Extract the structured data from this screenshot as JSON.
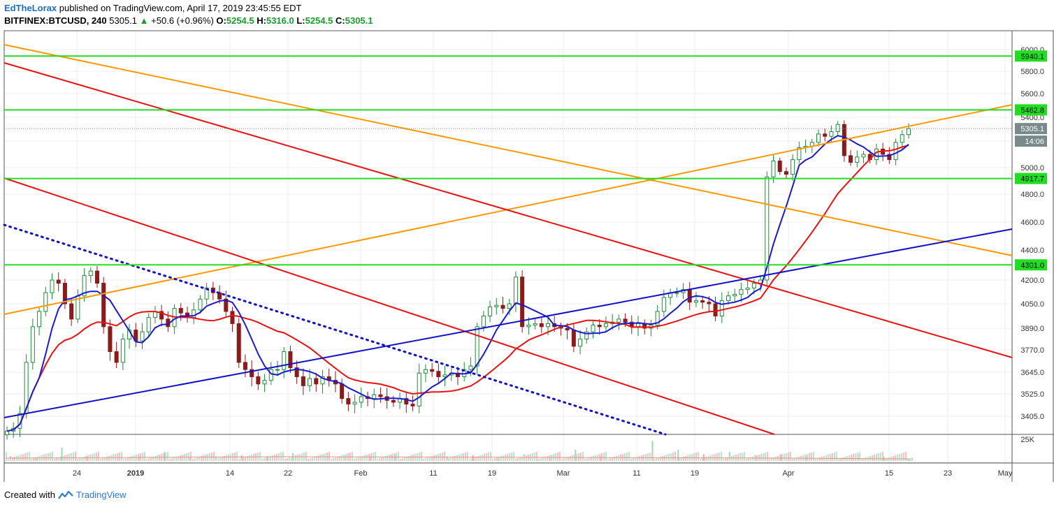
{
  "header": {
    "author": "EdTheLorax",
    "published": "published on TradingView.com, April 17, 2019 23:45:55 EDT",
    "symbol": "BITFINEX:BTCUSD, 240",
    "last": "5305.1",
    "change": "+50.6 (+0.96%)",
    "o_label": "O:",
    "o": "5254.5",
    "h_label": "H:",
    "h": "5316.0",
    "l_label": "L:",
    "l": "5254.5",
    "c_label": "C:",
    "c": "5305.1"
  },
  "footer": {
    "created_with": "Created with",
    "brand": "TradingView"
  },
  "colors": {
    "green_level": "#22dd22",
    "orange": "#ff9900",
    "red": "#ee1111",
    "blue": "#1111cc",
    "ma_red": "#ee1111",
    "ma_blue": "#1a1ad0",
    "candle_up": "#1e8c3a",
    "candle_down": "#8b1a1a",
    "grid": "#eeeeee",
    "label_green_bg": "#22dd22",
    "label_gray_bg": "#7a8a8a"
  },
  "chart_data": {
    "type": "candlestick",
    "symbol": "BITFINEX:BTCUSD",
    "interval": "240",
    "x_ticks": [
      "24",
      "2019",
      "14",
      "22",
      "Feb",
      "11",
      "19",
      "Mar",
      "11",
      "19",
      "Apr",
      "15",
      "23",
      "May"
    ],
    "y_ticks": [
      "6000.0",
      "5800.0",
      "5600.0",
      "5400.0",
      "5200.0",
      "5000.0",
      "4800.0",
      "4600.0",
      "4400.0",
      "4200.0",
      "4050.0",
      "3890.0",
      "3770.0",
      "3645.0",
      "3525.0",
      "3405.0"
    ],
    "volume_tick": "25K",
    "price_labels": [
      {
        "value": "5940.1",
        "kind": "level"
      },
      {
        "value": "5462.8",
        "kind": "level"
      },
      {
        "value": "5305.1",
        "kind": "last"
      },
      {
        "value": "14:06",
        "kind": "countdown"
      },
      {
        "value": "4917.7",
        "kind": "level"
      },
      {
        "value": "4301.0",
        "kind": "level"
      }
    ],
    "horizontal_levels": [
      5940.1,
      5462.8,
      4917.7,
      4301.0
    ],
    "last_price": 5305.1,
    "closes": [
      3325,
      3340,
      3420,
      3700,
      3900,
      4000,
      4120,
      4200,
      4180,
      4050,
      3950,
      4100,
      4230,
      4260,
      4180,
      3900,
      3760,
      3700,
      3830,
      3880,
      3820,
      3870,
      3960,
      4000,
      3950,
      3900,
      4020,
      3990,
      3960,
      4010,
      4080,
      4150,
      4120,
      4080,
      4000,
      3920,
      3700,
      3660,
      3620,
      3580,
      3600,
      3660,
      3660,
      3760,
      3670,
      3620,
      3570,
      3610,
      3580,
      3620,
      3600,
      3580,
      3500,
      3470,
      3480,
      3510,
      3500,
      3520,
      3510,
      3490,
      3480,
      3500,
      3470,
      3460,
      3640,
      3660,
      3650,
      3620,
      3630,
      3640,
      3620,
      3660,
      3680,
      3900,
      3970,
      4030,
      4040,
      4020,
      4050,
      4220,
      3900,
      3910,
      3920,
      3900,
      3920,
      3900,
      3890,
      3880,
      3790,
      3830,
      3870,
      3910,
      3900,
      3920,
      3930,
      3950,
      3930,
      3900,
      3920,
      3890,
      3910,
      4000,
      4090,
      4120,
      4120,
      4140,
      4060,
      4070,
      4060,
      4050,
      3970,
      4070,
      4100,
      4110,
      4140,
      4150,
      4180,
      4200,
      4930,
      5050,
      4970,
      4950,
      5060,
      5150,
      5160,
      5190,
      5260,
      5240,
      5280,
      5340,
      5090,
      5040,
      5080,
      5100,
      5060,
      5140,
      5100,
      5060,
      5190,
      5254.5,
      5305.1
    ],
    "volume_spikes": [
      0.2,
      0.15,
      0.6,
      0.2,
      0.3,
      0.2,
      0.4,
      0.15,
      0.2,
      0.25,
      0.2,
      0.35,
      0.1,
      0.2,
      0.15,
      0.25,
      0.3,
      0.2,
      0.25,
      0.1,
      0.3,
      0.15,
      0.5,
      0.2,
      0.25,
      0.9,
      0.5,
      0.3,
      0.4,
      0.25,
      0.3,
      0.2,
      0.15,
      0.3,
      0.2,
      0.1
    ]
  }
}
